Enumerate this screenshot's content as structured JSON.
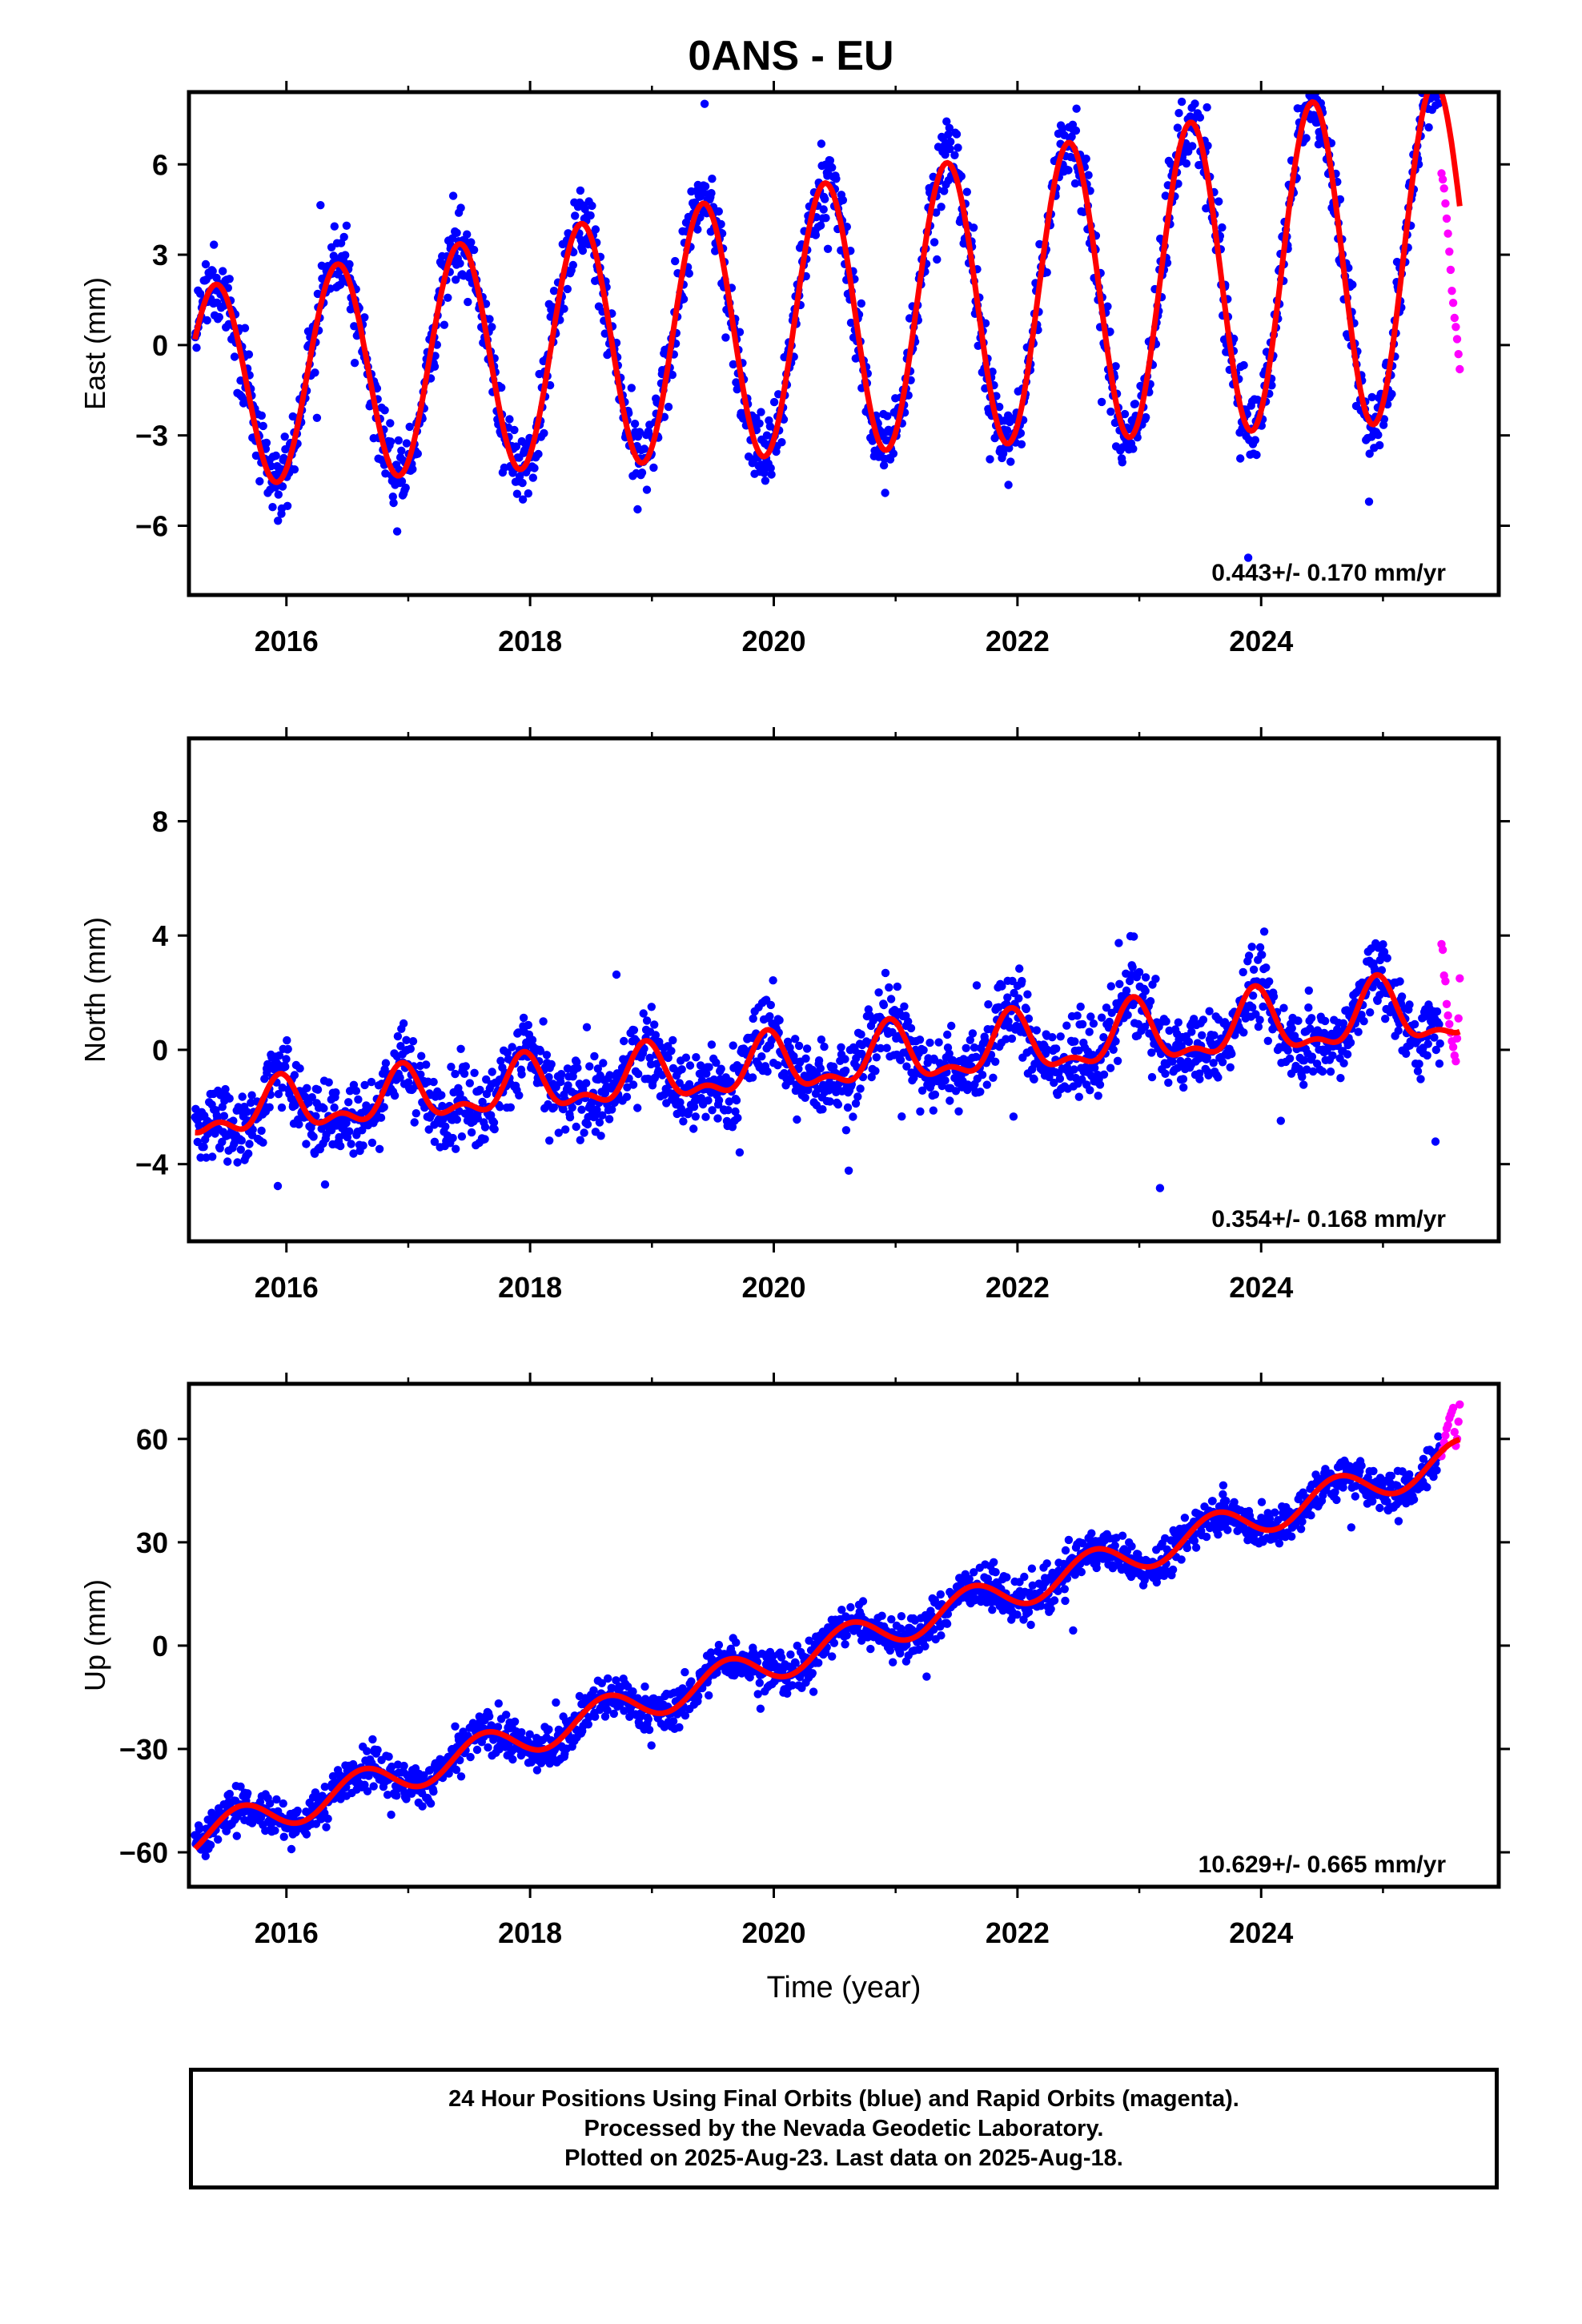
{
  "title": "0ANS - EU",
  "footer": {
    "line1": "24 Hour Positions Using Final Orbits (blue) and Rapid Orbits (magenta).",
    "line2": "Processed by the Nevada Geodetic Laboratory.",
    "line3": "Plotted on 2025-Aug-23. Last data on 2025-Aug-18."
  },
  "colors": {
    "final_orbits": "#0000ff",
    "rapid_orbits": "#ff00ff",
    "fit_line": "#ff0000",
    "frame": "#000000"
  },
  "chart_data": [
    {
      "type": "scatter",
      "ylabel": "East (mm)",
      "xlabel": "",
      "xlim": [
        2015.2,
        2025.95
      ],
      "ylim": [
        -8.3,
        8.4
      ],
      "yticks": [
        -6,
        -3,
        0,
        3,
        6
      ],
      "ytick_labels": [
        "−6",
        "−3",
        "0",
        "3",
        "6"
      ],
      "xticks": [
        2016,
        2018,
        2020,
        2022,
        2024
      ],
      "xtick_labels": [
        "2016",
        "2018",
        "2020",
        "2022",
        "2024"
      ],
      "rate_text": "0.443+/- 0.170 mm/yr",
      "fit": {
        "start": 2015.25,
        "end": 2025.63,
        "intercept": -1.4,
        "rate": 0.443,
        "amplitude": 3.3,
        "amp_growth": 0.23,
        "peak": 0.42
      },
      "scatter": {
        "noise": 0.9,
        "outlier_fraction": 0.02,
        "outlier_size": 2.6
      },
      "rapid": {
        "start": 2025.48,
        "end": 2025.63,
        "values": [
          5.7,
          5.5,
          5.2,
          4.7,
          4.2,
          3.7,
          3.1,
          2.5,
          1.8,
          1.4,
          0.9,
          0.6,
          0.2,
          -0.3,
          -0.8
        ]
      },
      "series": [
        {
          "name": "Final Orbits (blue)",
          "color": "#0000ff"
        },
        {
          "name": "Rapid Orbits (magenta)",
          "color": "#ff00ff"
        }
      ]
    },
    {
      "type": "scatter",
      "ylabel": "North (mm)",
      "xlabel": "",
      "xlim": [
        2015.2,
        2025.95
      ],
      "ylim": [
        -6.7,
        10.9
      ],
      "yticks": [
        -4,
        0,
        4,
        8
      ],
      "ytick_labels": [
        "−4",
        "0",
        "4",
        "8"
      ],
      "xticks": [
        2016,
        2018,
        2020,
        2022,
        2024
      ],
      "xtick_labels": [
        "2016",
        "2018",
        "2020",
        "2022",
        "2024"
      ],
      "rate_text": "0.354+/- 0.168 mm/yr",
      "fit": {
        "start": 2015.25,
        "end": 2025.63,
        "intercept": -2.3,
        "rate": 0.354,
        "amplitude": 0.75,
        "amp_growth": 0.03,
        "peak": 0.95,
        "semi": 0.45
      },
      "scatter": {
        "noise": 0.95,
        "outlier_fraction": 0.02,
        "outlier_size": 3.0
      },
      "rapid": {
        "start": 2025.48,
        "end": 2025.63,
        "values": [
          3.7,
          3.5,
          2.6,
          2.4,
          1.6,
          1.2,
          0.9,
          0.6,
          0.3,
          0.1,
          -0.2,
          -0.4,
          0.4,
          1.1,
          2.5
        ]
      },
      "series": [
        {
          "name": "Final Orbits (blue)",
          "color": "#0000ff"
        },
        {
          "name": "Rapid Orbits (magenta)",
          "color": "#ff00ff"
        }
      ]
    },
    {
      "type": "scatter",
      "ylabel": "Up (mm)",
      "xlabel": "Time (year)",
      "xlim": [
        2015.2,
        2025.95
      ],
      "ylim": [
        -70,
        76
      ],
      "yticks": [
        -60,
        -30,
        0,
        30,
        60
      ],
      "ytick_labels": [
        "−60",
        "−30",
        "0",
        "30",
        "60"
      ],
      "xticks": [
        2016,
        2018,
        2020,
        2022,
        2024
      ],
      "xtick_labels": [
        "2016",
        "2018",
        "2020",
        "2022",
        "2024"
      ],
      "rate_text": "10.629+/- 0.665 mm/yr",
      "fit": {
        "start": 2015.25,
        "end": 2025.63,
        "intercept": -55.5,
        "rate": 10.629,
        "amplitude": 5.0,
        "amp_growth": 0.0,
        "peak": 0.62
      },
      "scatter": {
        "noise": 4.2,
        "outlier_fraction": 0.015,
        "outlier_size": 2.5
      },
      "rapid": {
        "start": 2025.48,
        "end": 2025.63,
        "values": [
          55,
          57,
          59,
          61,
          63,
          64,
          66,
          67,
          68,
          69,
          62,
          58,
          60,
          65,
          70
        ]
      },
      "series": [
        {
          "name": "Final Orbits (blue)",
          "color": "#0000ff"
        },
        {
          "name": "Rapid Orbits (magenta)",
          "color": "#ff00ff"
        }
      ]
    }
  ]
}
